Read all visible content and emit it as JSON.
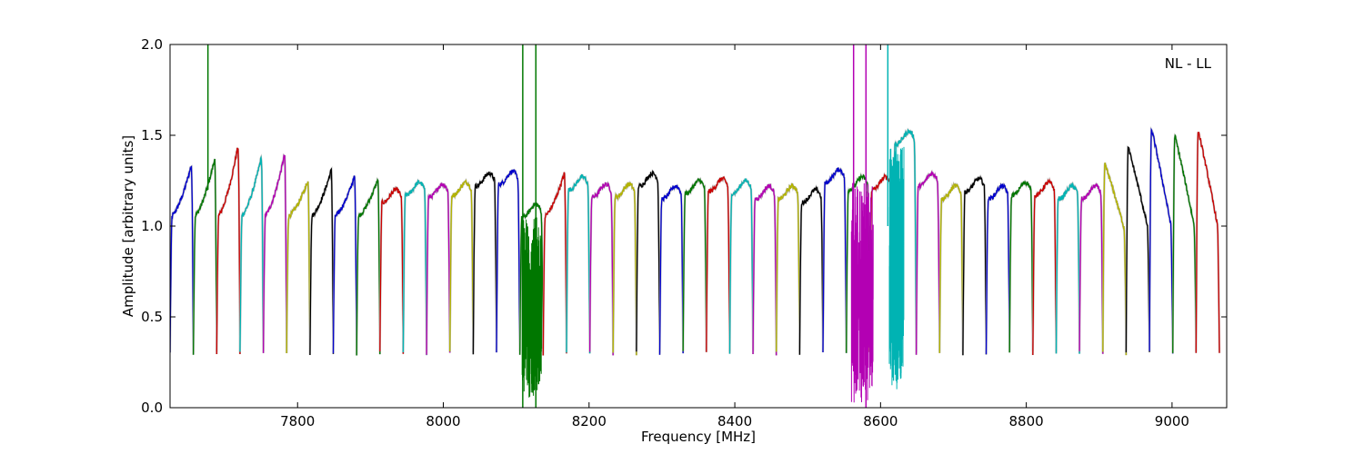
{
  "chart_data": {
    "type": "line",
    "title": "",
    "annotation": "NL - LL",
    "xlabel": "Frequency [MHz]",
    "ylabel": "Amplitude [arbitrary units]",
    "xlim": [
      7625,
      9075
    ],
    "ylim": [
      0.0,
      2.0
    ],
    "xticks": [
      7800,
      8000,
      8200,
      8400,
      8600,
      8800,
      9000
    ],
    "yticks": [
      0.0,
      0.5,
      1.0,
      1.5,
      2.0
    ],
    "xtick_labels": [
      "7800",
      "8000",
      "8200",
      "8400",
      "8600",
      "8800",
      "9000"
    ],
    "ytick_labels": [
      "0.0",
      "0.5",
      "1.0",
      "1.5",
      "2.0"
    ],
    "grid": false,
    "band_width_mhz": 32,
    "color_cycle": [
      "#0000cc",
      "#007700",
      "#cc0000",
      "#00b3b3",
      "#b300b3",
      "#b3b300",
      "#000000"
    ],
    "series": [
      {
        "x_start": 7625,
        "peak": 1.38,
        "shape": "rise"
      },
      {
        "x_start": 7657,
        "peak": 1.42,
        "shape": "rise"
      },
      {
        "x_start": 7689,
        "peak": 1.5,
        "shape": "rise"
      },
      {
        "x_start": 7721,
        "peak": 1.43,
        "shape": "rise"
      },
      {
        "x_start": 7753,
        "peak": 1.45,
        "shape": "rise"
      },
      {
        "x_start": 7785,
        "peak": 1.28,
        "shape": "rise"
      },
      {
        "x_start": 7817,
        "peak": 1.35,
        "shape": "rise"
      },
      {
        "x_start": 7849,
        "peak": 1.31,
        "shape": "rise"
      },
      {
        "x_start": 7881,
        "peak": 1.29,
        "shape": "rise"
      },
      {
        "x_start": 7913,
        "peak": 1.18,
        "shape": "flat"
      },
      {
        "x_start": 7945,
        "peak": 1.22,
        "shape": "flat"
      },
      {
        "x_start": 7977,
        "peak": 1.21,
        "shape": "flat"
      },
      {
        "x_start": 8009,
        "peak": 1.22,
        "shape": "flat"
      },
      {
        "x_start": 8041,
        "peak": 1.27,
        "shape": "flat"
      },
      {
        "x_start": 8073,
        "peak": 1.28,
        "shape": "flat"
      },
      {
        "x_start": 8105,
        "peak": 1.1,
        "shape": "flat"
      },
      {
        "x_start": 8137,
        "peak": 1.33,
        "shape": "rise"
      },
      {
        "x_start": 8169,
        "peak": 1.25,
        "shape": "flat"
      },
      {
        "x_start": 8201,
        "peak": 1.21,
        "shape": "flat"
      },
      {
        "x_start": 8233,
        "peak": 1.21,
        "shape": "flat"
      },
      {
        "x_start": 8265,
        "peak": 1.27,
        "shape": "flat"
      },
      {
        "x_start": 8297,
        "peak": 1.2,
        "shape": "flat"
      },
      {
        "x_start": 8329,
        "peak": 1.23,
        "shape": "flat"
      },
      {
        "x_start": 8361,
        "peak": 1.24,
        "shape": "flat"
      },
      {
        "x_start": 8393,
        "peak": 1.23,
        "shape": "flat"
      },
      {
        "x_start": 8425,
        "peak": 1.2,
        "shape": "flat"
      },
      {
        "x_start": 8457,
        "peak": 1.2,
        "shape": "flat"
      },
      {
        "x_start": 8489,
        "peak": 1.18,
        "shape": "flat"
      },
      {
        "x_start": 8521,
        "peak": 1.29,
        "shape": "flat"
      },
      {
        "x_start": 8553,
        "peak": 1.25,
        "shape": "flat"
      },
      {
        "x_start": 8585,
        "peak": 1.25,
        "shape": "flat"
      },
      {
        "x_start": 8617,
        "peak": 1.5,
        "shape": "flat"
      },
      {
        "x_start": 8649,
        "peak": 1.27,
        "shape": "flat"
      },
      {
        "x_start": 8681,
        "peak": 1.2,
        "shape": "flat"
      },
      {
        "x_start": 8713,
        "peak": 1.24,
        "shape": "flat"
      },
      {
        "x_start": 8745,
        "peak": 1.2,
        "shape": "flat"
      },
      {
        "x_start": 8777,
        "peak": 1.22,
        "shape": "flat"
      },
      {
        "x_start": 8809,
        "peak": 1.22,
        "shape": "flat"
      },
      {
        "x_start": 8841,
        "peak": 1.2,
        "shape": "flat"
      },
      {
        "x_start": 8873,
        "peak": 1.2,
        "shape": "flat"
      },
      {
        "x_start": 8905,
        "peak": 1.37,
        "shape": "fall"
      },
      {
        "x_start": 8937,
        "peak": 1.47,
        "shape": "fall"
      },
      {
        "x_start": 8969,
        "peak": 1.58,
        "shape": "fall"
      },
      {
        "x_start": 9001,
        "peak": 1.54,
        "shape": "fall"
      },
      {
        "x_start": 9033,
        "peak": 1.57,
        "shape": "fall"
      }
    ],
    "spikes": [
      {
        "x": 7677,
        "y_low": 1.2,
        "y_high": 2.0,
        "color": "#007700"
      },
      {
        "x": 8109,
        "y_low": 0.0,
        "y_high": 2.0,
        "color": "#007700"
      },
      {
        "x": 8127,
        "y_low": 0.0,
        "y_high": 2.0,
        "color": "#007700"
      },
      {
        "x": 8563,
        "y_low": 0.2,
        "y_high": 2.0,
        "color": "#b300b3"
      },
      {
        "x": 8580,
        "y_low": 0.0,
        "y_high": 2.0,
        "color": "#b300b3"
      },
      {
        "x": 8610,
        "y_low": 1.0,
        "y_high": 2.0,
        "color": "#00b3b3"
      }
    ],
    "noise_regions": [
      {
        "x_from": 8108,
        "x_to": 8135,
        "y_min": 0.05,
        "y_max": 1.05,
        "color": "#007700"
      },
      {
        "x_from": 8560,
        "x_to": 8590,
        "y_min": 0.02,
        "y_max": 1.25,
        "color": "#b300b3"
      },
      {
        "x_from": 8612,
        "x_to": 8632,
        "y_min": 0.1,
        "y_max": 1.45,
        "color": "#00b3b3"
      }
    ]
  }
}
